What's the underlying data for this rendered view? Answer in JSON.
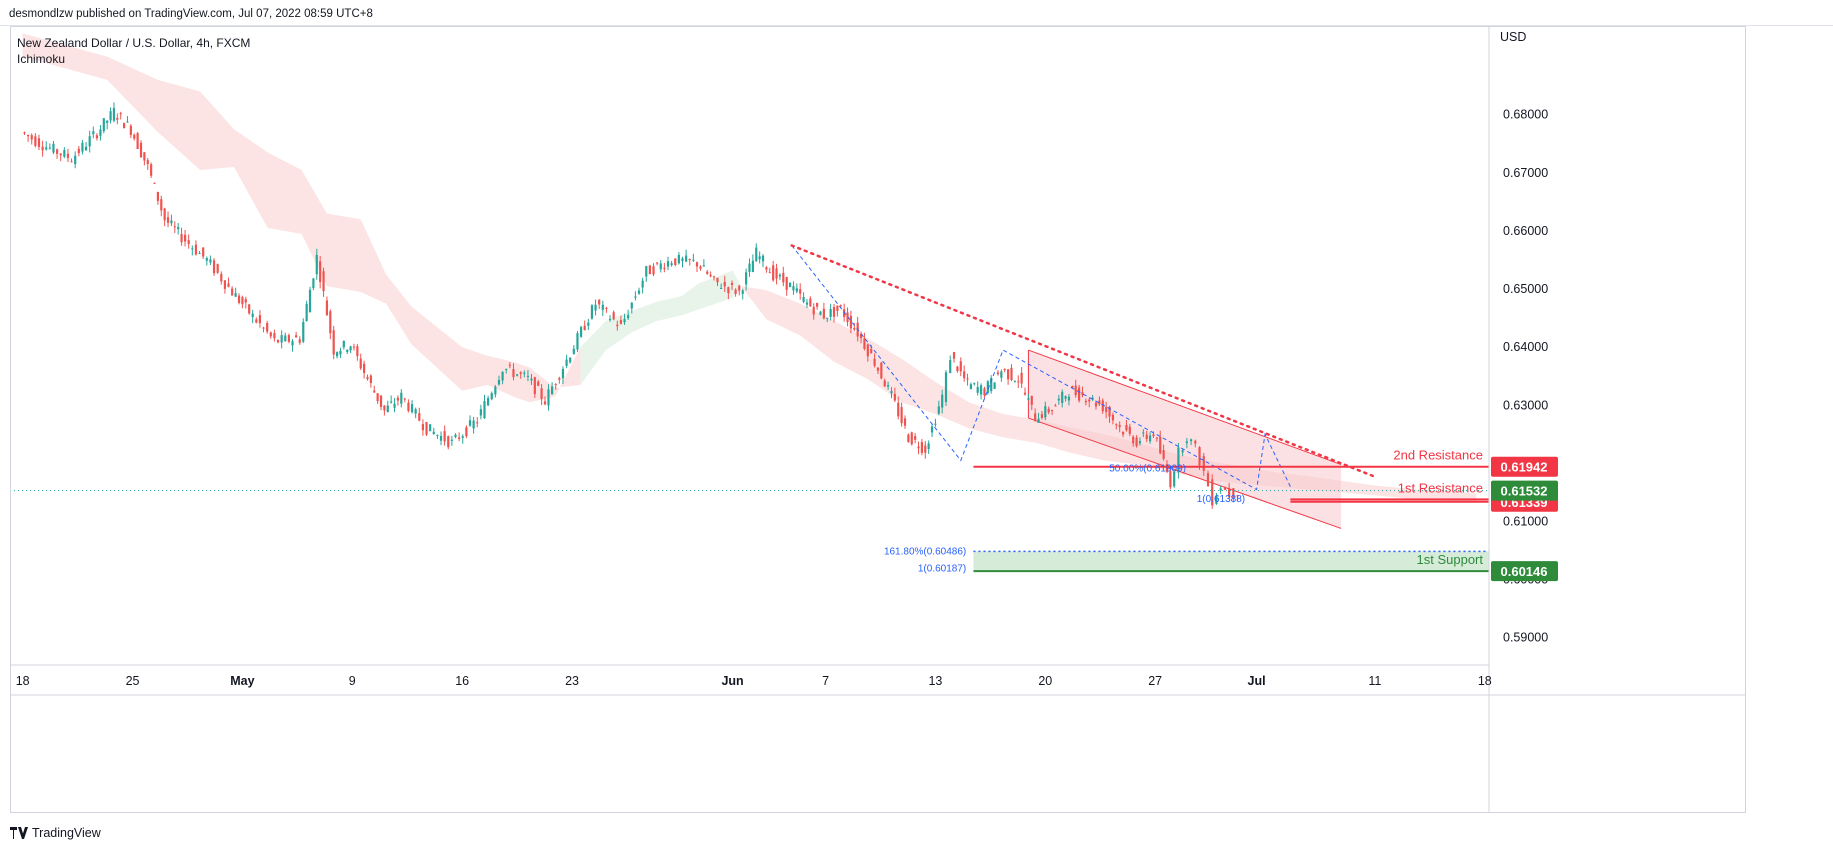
{
  "header": {
    "published": "desmondlzw published on TradingView.com, Jul 07, 2022 08:59 UTC+8"
  },
  "legend": {
    "symbol": "New Zealand Dollar / U.S. Dollar, 4h, FXCM",
    "indicator": "Ichimoku"
  },
  "footer": {
    "brand": "TradingView",
    "logo": "tradingview-logo"
  },
  "colors": {
    "up": "#26a69a",
    "down": "#ef5350",
    "resistance": "#f23645",
    "support": "#2e8b3a",
    "fib": "#2962ff",
    "kumo_bear": "#fce4e4",
    "kumo_bull": "#e8f3ea",
    "channel": "#f8c9cc"
  },
  "chart_data": {
    "type": "candlestick",
    "title": "New Zealand Dollar / U.S. Dollar, 4h, FXCM",
    "currency": "USD",
    "x_tick_labels": [
      "18",
      "25",
      "May",
      "9",
      "16",
      "23",
      "Jun",
      "7",
      "13",
      "20",
      "27",
      "Jul",
      "11",
      "18"
    ],
    "y_ticks": [
      0.59,
      0.6,
      0.61,
      0.62,
      0.63,
      0.64,
      0.65,
      0.66,
      0.67,
      0.68
    ],
    "y_tick_labels": [
      "0.59000",
      "0.60000",
      "0.61000",
      "0.62000",
      "0.63000",
      "0.64000",
      "0.65000",
      "0.66000",
      "0.67000",
      "0.68000"
    ],
    "ylim": [
      0.5853,
      0.6951
    ],
    "price_path": [
      [
        0,
        0.677
      ],
      [
        3,
        0.6745
      ],
      [
        6,
        0.6725
      ],
      [
        9,
        0.677
      ],
      [
        11,
        0.6805
      ],
      [
        13,
        0.6775
      ],
      [
        15,
        0.671
      ],
      [
        17,
        0.662
      ],
      [
        19,
        0.659
      ],
      [
        22,
        0.655
      ],
      [
        25,
        0.6495
      ],
      [
        27,
        0.646
      ],
      [
        30,
        0.641
      ],
      [
        33,
        0.6415
      ],
      [
        35,
        0.6555
      ],
      [
        37,
        0.6395
      ],
      [
        39,
        0.6405
      ],
      [
        41,
        0.6345
      ],
      [
        43,
        0.629
      ],
      [
        45,
        0.6315
      ],
      [
        48,
        0.626
      ],
      [
        51,
        0.6235
      ],
      [
        54,
        0.6275
      ],
      [
        57,
        0.6365
      ],
      [
        60,
        0.6345
      ],
      [
        62,
        0.6308
      ],
      [
        65,
        0.639
      ],
      [
        68,
        0.6475
      ],
      [
        71,
        0.6435
      ],
      [
        74,
        0.653
      ],
      [
        77,
        0.655
      ],
      [
        80,
        0.6545
      ],
      [
        82,
        0.6512
      ],
      [
        85,
        0.6495
      ],
      [
        87,
        0.6562
      ],
      [
        89,
        0.6525
      ],
      [
        91,
        0.6505
      ],
      [
        93,
        0.6475
      ],
      [
        95,
        0.6455
      ],
      [
        97,
        0.6465
      ],
      [
        99,
        0.6425
      ],
      [
        101,
        0.6375
      ],
      [
        103,
        0.6315
      ],
      [
        105,
        0.6245
      ],
      [
        107,
        0.6225
      ],
      [
        109,
        0.6315
      ],
      [
        110,
        0.6385
      ],
      [
        112,
        0.6335
      ],
      [
        114,
        0.6325
      ],
      [
        116,
        0.636
      ],
      [
        118,
        0.6345
      ],
      [
        120,
        0.628
      ],
      [
        122,
        0.6295
      ],
      [
        124,
        0.6325
      ],
      [
        126,
        0.6315
      ],
      [
        128,
        0.6298
      ],
      [
        130,
        0.6262
      ],
      [
        132,
        0.6238
      ],
      [
        134,
        0.6252
      ],
      [
        136,
        0.6168
      ],
      [
        137,
        0.6218
      ],
      [
        138,
        0.6248
      ],
      [
        139,
        0.6225
      ],
      [
        140,
        0.6185
      ],
      [
        141,
        0.6138
      ],
      [
        142,
        0.6162
      ],
      [
        143,
        0.6148
      ],
      [
        144,
        0.6153
      ]
    ],
    "ichimoku_cloud": [
      [
        0,
        0.694,
        0.69
      ],
      [
        10,
        0.69,
        0.686
      ],
      [
        16,
        0.686,
        0.677
      ],
      [
        21,
        0.684,
        0.6705
      ],
      [
        25,
        0.6775,
        0.671
      ],
      [
        29,
        0.6735,
        0.6605
      ],
      [
        33,
        0.6705,
        0.6595
      ],
      [
        36,
        0.663,
        0.6505
      ],
      [
        40,
        0.662,
        0.6495
      ],
      [
        43,
        0.6525,
        0.6475
      ],
      [
        46,
        0.647,
        0.6405
      ],
      [
        49,
        0.6435,
        0.6365
      ],
      [
        52,
        0.64,
        0.6325
      ],
      [
        55,
        0.6385,
        0.6335
      ],
      [
        58,
        0.6375,
        0.6315
      ],
      [
        60,
        0.6365,
        0.6305
      ],
      [
        63,
        0.633,
        0.6315
      ],
      [
        66,
        0.6335,
        0.64
      ],
      [
        69,
        0.6395,
        0.6445
      ],
      [
        72,
        0.6425,
        0.6462
      ],
      [
        75,
        0.6445,
        0.6478
      ],
      [
        78,
        0.6455,
        0.6488
      ],
      [
        80,
        0.6465,
        0.651
      ],
      [
        82,
        0.6475,
        0.652
      ],
      [
        84,
        0.6485,
        0.6532
      ],
      [
        85,
        0.6505,
        0.6505
      ],
      [
        88,
        0.6498,
        0.6448
      ],
      [
        92,
        0.6475,
        0.642
      ],
      [
        96,
        0.6445,
        0.6375
      ],
      [
        100,
        0.6415,
        0.6345
      ],
      [
        104,
        0.638,
        0.6305
      ],
      [
        108,
        0.634,
        0.6285
      ],
      [
        112,
        0.6305,
        0.626
      ],
      [
        116,
        0.6285,
        0.6245
      ],
      [
        120,
        0.6275,
        0.6235
      ],
      [
        124,
        0.6262,
        0.6218
      ],
      [
        128,
        0.625,
        0.6205
      ],
      [
        132,
        0.6235,
        0.6198
      ],
      [
        136,
        0.6218,
        0.6185
      ],
      [
        140,
        0.6205,
        0.6172
      ],
      [
        144,
        0.6195,
        0.6165
      ],
      [
        148,
        0.6185,
        0.616
      ],
      [
        152,
        0.6178,
        0.6155
      ],
      [
        156,
        0.617,
        0.615
      ],
      [
        160,
        0.6162,
        0.6145
      ],
      [
        165,
        0.6155,
        0.6138
      ],
      [
        172,
        0.6148,
        0.6132
      ]
    ],
    "levels": [
      {
        "label": "2nd Resistance",
        "price": "0.61942",
        "value": 0.61942,
        "from": 112.5,
        "color": "#f23645"
      },
      {
        "label": "1st Resistance",
        "price": "",
        "value": 0.6138,
        "from": 150,
        "color": "#f23645"
      },
      {
        "label": "",
        "price": "0.61339",
        "value": 0.61339,
        "from": 150,
        "color": "#f23645"
      },
      {
        "label": "1st Support",
        "price": "0.60146",
        "value": 0.60146,
        "from": 112.5,
        "color": "#2e8b3a"
      }
    ],
    "last_price": {
      "price": "0.61532",
      "value": 0.61532
    },
    "fib_labels": [
      {
        "text": "50.00%(0.61909)",
        "x": 138,
        "y": 0.6191
      },
      {
        "text": "1(0.61388)",
        "x": 145,
        "y": 0.6139
      },
      {
        "text": "161.80%(0.60486)",
        "x": 112,
        "y": 0.60486
      },
      {
        "text": "1(0.60187)",
        "x": 112,
        "y": 0.60187
      }
    ],
    "fib_bands": [
      {
        "from": 0.60146,
        "to": 0.60486,
        "start": 112.5,
        "color": "#d6ecd9"
      }
    ],
    "trendline": {
      "points": [
        [
          91,
          0.6575
        ],
        [
          160,
          0.6177
        ]
      ],
      "style": "dotted",
      "color": "#f23645"
    },
    "channel": {
      "upper": [
        [
          119,
          0.6395
        ],
        [
          156,
          0.6198
        ]
      ],
      "lower": [
        [
          119,
          0.6278
        ],
        [
          156,
          0.6088
        ]
      ]
    },
    "swing_lines": [
      {
        "points": [
          [
            91,
            0.6575
          ],
          [
            111,
            0.6205
          ],
          [
            116,
            0.6395
          ],
          [
            146,
            0.6155
          ],
          [
            147,
            0.625
          ],
          [
            150,
            0.616
          ]
        ],
        "style": "dashed",
        "color": "#2962ff"
      }
    ],
    "x_axis_positions": [
      0,
      13,
      26,
      39,
      52,
      65,
      84,
      95,
      108,
      121,
      134,
      146,
      160,
      173
    ],
    "x_range": [
      -1.5,
      173.5
    ]
  }
}
